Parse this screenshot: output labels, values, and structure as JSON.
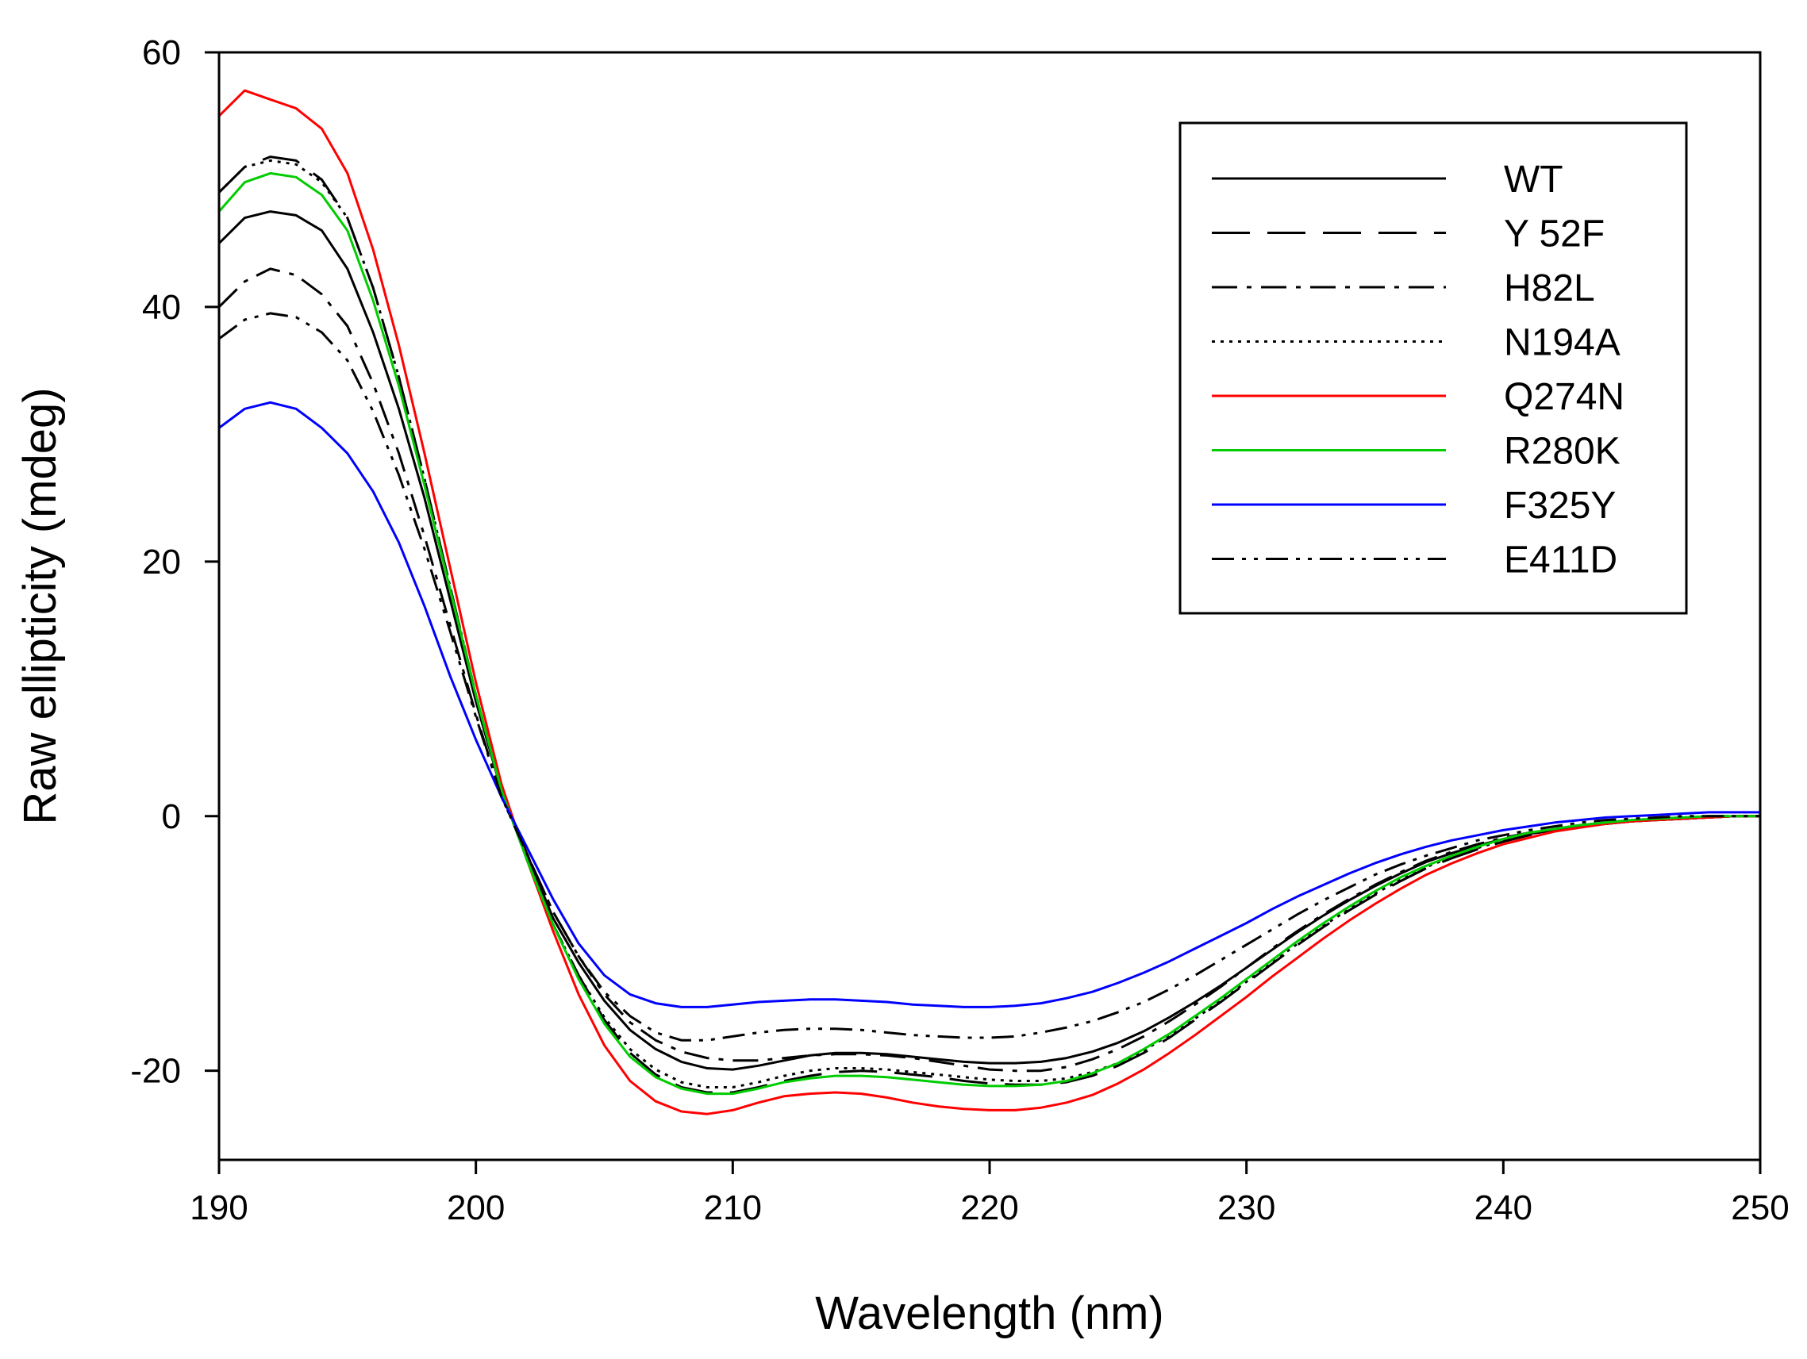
{
  "chart_data": {
    "type": "line",
    "title": "",
    "xlabel": "Wavelength (nm)",
    "ylabel": "Raw ellipticity (mdeg)",
    "xlim": [
      190,
      250
    ],
    "ylim": [
      -27,
      60
    ],
    "x_ticks": [
      190,
      200,
      210,
      220,
      230,
      240,
      250
    ],
    "y_ticks": [
      -20,
      0,
      20,
      40,
      60
    ],
    "grid": false,
    "legend_position": "top-right",
    "x": [
      190,
      191,
      192,
      193,
      194,
      195,
      196,
      197,
      198,
      199,
      200,
      201,
      202,
      203,
      204,
      205,
      206,
      207,
      208,
      209,
      210,
      211,
      212,
      213,
      214,
      215,
      216,
      217,
      218,
      219,
      220,
      221,
      222,
      223,
      224,
      225,
      226,
      227,
      228,
      229,
      230,
      231,
      232,
      233,
      234,
      235,
      236,
      237,
      238,
      239,
      240,
      241,
      242,
      243,
      244,
      245,
      246,
      247,
      248,
      249,
      250
    ],
    "series": [
      {
        "name": "WT",
        "color": "#000000",
        "dash": "solid",
        "values": [
          45,
          47,
          47.5,
          47.2,
          46,
          43,
          38,
          32,
          25,
          17,
          9,
          2,
          -3,
          -8,
          -11.5,
          -14.5,
          -16.8,
          -18.3,
          -19.3,
          -19.8,
          -19.9,
          -19.6,
          -19.2,
          -18.8,
          -18.6,
          -18.6,
          -18.7,
          -18.9,
          -19.1,
          -19.3,
          -19.4,
          -19.4,
          -19.3,
          -19,
          -18.5,
          -17.8,
          -16.9,
          -15.8,
          -14.6,
          -13.3,
          -11.9,
          -10.5,
          -9.1,
          -7.8,
          -6.6,
          -5.5,
          -4.5,
          -3.6,
          -2.9,
          -2.3,
          -1.8,
          -1.4,
          -1.1,
          -0.8,
          -0.6,
          -0.4,
          -0.3,
          -0.2,
          -0.1,
          0,
          0
        ]
      },
      {
        "name": "Y 52F",
        "color": "#000000",
        "dash": "long-dash",
        "values": [
          49,
          51,
          51.8,
          51.5,
          50,
          47,
          41.5,
          34.5,
          26.5,
          18,
          9.5,
          2,
          -3.5,
          -8.5,
          -12.5,
          -16,
          -18.6,
          -20.3,
          -21.3,
          -21.7,
          -21.7,
          -21.3,
          -20.8,
          -20.4,
          -20.1,
          -20,
          -20.1,
          -20.3,
          -20.5,
          -20.8,
          -21,
          -21.1,
          -21.1,
          -20.9,
          -20.4,
          -19.6,
          -18.6,
          -17.4,
          -16,
          -14.6,
          -13.1,
          -11.6,
          -10.1,
          -8.7,
          -7.4,
          -6.2,
          -5.1,
          -4.1,
          -3.3,
          -2.6,
          -2,
          -1.5,
          -1.1,
          -0.8,
          -0.6,
          -0.4,
          -0.3,
          -0.2,
          -0.1,
          0,
          0
        ]
      },
      {
        "name": "H82L",
        "color": "#000000",
        "dash": "dash-dot",
        "values": [
          40,
          42,
          43,
          42.5,
          41,
          38.5,
          34,
          28.5,
          22,
          15,
          8,
          1.5,
          -3,
          -7.5,
          -11,
          -14,
          -16.2,
          -17.6,
          -18.5,
          -19,
          -19.2,
          -19.2,
          -19,
          -18.8,
          -18.7,
          -18.7,
          -18.8,
          -19,
          -19.3,
          -19.6,
          -19.9,
          -20,
          -20,
          -19.7,
          -19.1,
          -18.3,
          -17.3,
          -16.1,
          -14.8,
          -13.4,
          -11.9,
          -10.4,
          -9,
          -7.7,
          -6.5,
          -5.4,
          -4.4,
          -3.5,
          -2.8,
          -2.2,
          -1.7,
          -1.3,
          -1,
          -0.7,
          -0.5,
          -0.3,
          -0.2,
          -0.1,
          0,
          0,
          0
        ]
      },
      {
        "name": "N194A",
        "color": "#000000",
        "dash": "dotted",
        "values": [
          49,
          51,
          51.5,
          51.2,
          49.8,
          47,
          41.5,
          34.5,
          26.5,
          18,
          9.5,
          2,
          -3.5,
          -8.5,
          -12.5,
          -15.8,
          -18.3,
          -19.9,
          -20.9,
          -21.3,
          -21.3,
          -20.9,
          -20.4,
          -20,
          -19.8,
          -19.8,
          -19.9,
          -20.1,
          -20.3,
          -20.5,
          -20.7,
          -20.8,
          -20.8,
          -20.6,
          -20.1,
          -19.4,
          -18.4,
          -17.2,
          -15.9,
          -14.5,
          -13,
          -11.5,
          -10,
          -8.6,
          -7.3,
          -6.1,
          -5,
          -4,
          -3.2,
          -2.5,
          -1.9,
          -1.4,
          -1.1,
          -0.8,
          -0.6,
          -0.4,
          -0.3,
          -0.2,
          -0.1,
          0,
          0
        ]
      },
      {
        "name": "Q274N",
        "color": "#ff0000",
        "dash": "solid",
        "values": [
          55,
          57,
          56.3,
          55.6,
          54,
          50.5,
          44.5,
          37,
          28.5,
          19.5,
          10.5,
          2.5,
          -3.5,
          -9,
          -14,
          -18,
          -20.8,
          -22.4,
          -23.2,
          -23.4,
          -23.1,
          -22.5,
          -22,
          -21.8,
          -21.7,
          -21.8,
          -22.1,
          -22.5,
          -22.8,
          -23,
          -23.1,
          -23.1,
          -22.9,
          -22.5,
          -21.9,
          -21,
          -19.9,
          -18.6,
          -17.2,
          -15.7,
          -14.2,
          -12.6,
          -11.1,
          -9.6,
          -8.2,
          -6.9,
          -5.7,
          -4.6,
          -3.7,
          -2.9,
          -2.2,
          -1.7,
          -1.2,
          -0.9,
          -0.6,
          -0.4,
          -0.3,
          -0.2,
          -0.1,
          0,
          0
        ]
      },
      {
        "name": "R280K",
        "color": "#00cc00",
        "dash": "solid",
        "values": [
          47.5,
          49.8,
          50.5,
          50.2,
          48.8,
          46,
          40.5,
          33.8,
          26,
          17.8,
          9.5,
          2,
          -3.5,
          -8.5,
          -12.8,
          -16.3,
          -18.9,
          -20.5,
          -21.4,
          -21.8,
          -21.8,
          -21.4,
          -20.9,
          -20.6,
          -20.4,
          -20.4,
          -20.5,
          -20.7,
          -20.9,
          -21.1,
          -21.2,
          -21.2,
          -21.1,
          -20.8,
          -20.2,
          -19.4,
          -18.3,
          -17.1,
          -15.7,
          -14.3,
          -12.8,
          -11.3,
          -9.8,
          -8.4,
          -7.1,
          -5.9,
          -4.8,
          -3.9,
          -3.1,
          -2.4,
          -1.8,
          -1.3,
          -1,
          -0.7,
          -0.5,
          -0.3,
          -0.2,
          -0.1,
          0,
          0,
          0
        ]
      },
      {
        "name": "F325Y",
        "color": "#0000ff",
        "dash": "solid",
        "values": [
          30.5,
          32,
          32.5,
          32,
          30.5,
          28.5,
          25.5,
          21.5,
          16.5,
          11,
          6,
          1.5,
          -2.5,
          -6.5,
          -10,
          -12.5,
          -14,
          -14.7,
          -15,
          -15,
          -14.8,
          -14.6,
          -14.5,
          -14.4,
          -14.4,
          -14.5,
          -14.6,
          -14.8,
          -14.9,
          -15,
          -15,
          -14.9,
          -14.7,
          -14.3,
          -13.8,
          -13.1,
          -12.3,
          -11.4,
          -10.4,
          -9.4,
          -8.4,
          -7.3,
          -6.3,
          -5.4,
          -4.5,
          -3.7,
          -3,
          -2.4,
          -1.9,
          -1.5,
          -1.1,
          -0.8,
          -0.5,
          -0.3,
          -0.1,
          0,
          0.1,
          0.2,
          0.3,
          0.3,
          0.3
        ]
      },
      {
        "name": "E411D",
        "color": "#000000",
        "dash": "dash-dot-dot",
        "values": [
          37.5,
          39,
          39.5,
          39.2,
          38,
          35.8,
          31.8,
          26.8,
          21,
          14.5,
          7.8,
          1.5,
          -3,
          -7.5,
          -11,
          -13.8,
          -15.7,
          -17,
          -17.6,
          -17.6,
          -17.3,
          -17,
          -16.8,
          -16.7,
          -16.7,
          -16.8,
          -17,
          -17.2,
          -17.3,
          -17.4,
          -17.4,
          -17.3,
          -17,
          -16.6,
          -16.1,
          -15.4,
          -14.6,
          -13.6,
          -12.5,
          -11.3,
          -10.1,
          -8.9,
          -7.7,
          -6.6,
          -5.6,
          -4.6,
          -3.8,
          -3.1,
          -2.5,
          -1.9,
          -1.5,
          -1.1,
          -0.8,
          -0.5,
          -0.3,
          -0.2,
          -0.1,
          0,
          0,
          0,
          0
        ]
      }
    ]
  }
}
